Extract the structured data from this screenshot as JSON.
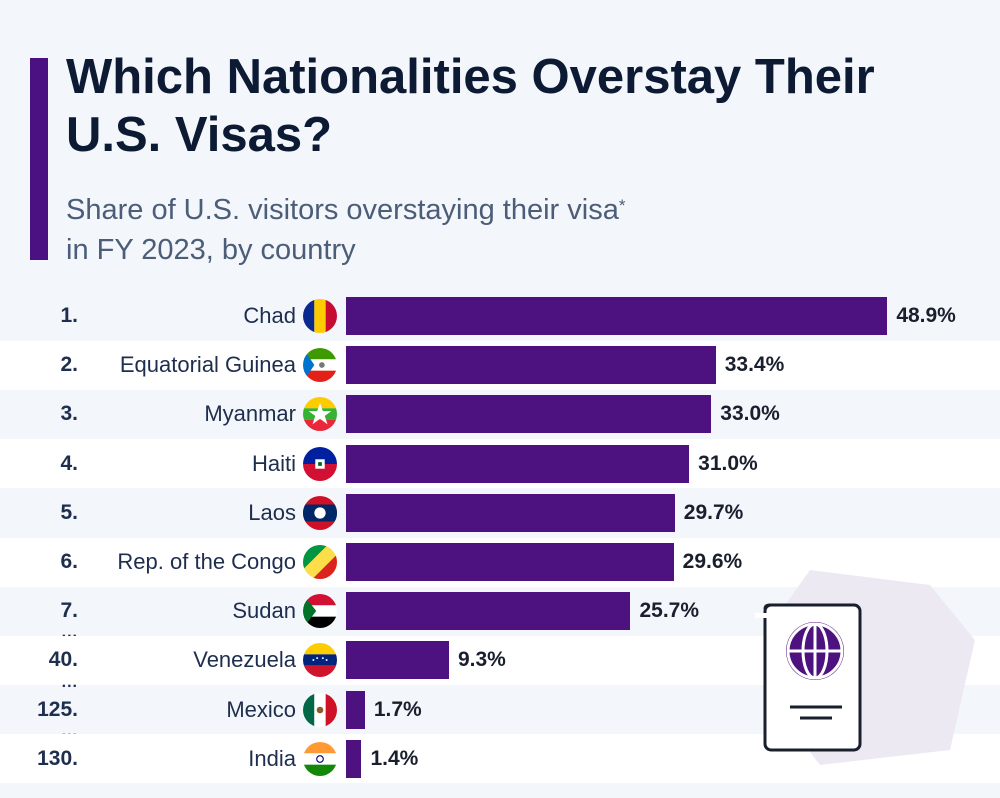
{
  "title": "Which Nationalities Overstay Their U.S. Visas?",
  "subtitle": {
    "text": "Share of U.S. visitors overstaying their visa",
    "footnote_mark": "*",
    "line2": "in FY 2023, by country"
  },
  "ellipsis": "...",
  "colors": {
    "bar": "#4d1280",
    "accent": "#4b1183",
    "title": "#0c1a33"
  },
  "chart_data": {
    "type": "bar",
    "orientation": "horizontal",
    "categories": [
      "Chad",
      "Equatorial Guinea",
      "Myanmar",
      "Haiti",
      "Laos",
      "Rep. of the Congo",
      "Sudan",
      "Venezuela",
      "Mexico",
      "India"
    ],
    "ranks": [
      "1.",
      "2.",
      "3.",
      "4.",
      "5.",
      "6.",
      "7.",
      "40.",
      "125.",
      "130."
    ],
    "values": [
      48.9,
      33.4,
      33.0,
      31.0,
      29.7,
      29.6,
      25.7,
      9.3,
      1.7,
      1.4
    ],
    "labels": [
      "48.9%",
      "33.4%",
      "33.0%",
      "31.0%",
      "29.7%",
      "29.6%",
      "25.7%",
      "9.3%",
      "1.7%",
      "1.4%"
    ],
    "flag_icons": [
      "chad-flag-icon",
      "equatorial-guinea-flag-icon",
      "myanmar-flag-icon",
      "haiti-flag-icon",
      "laos-flag-icon",
      "congo-flag-icon",
      "sudan-flag-icon",
      "venezuela-flag-icon",
      "mexico-flag-icon",
      "india-flag-icon"
    ],
    "unit": "%"
  }
}
